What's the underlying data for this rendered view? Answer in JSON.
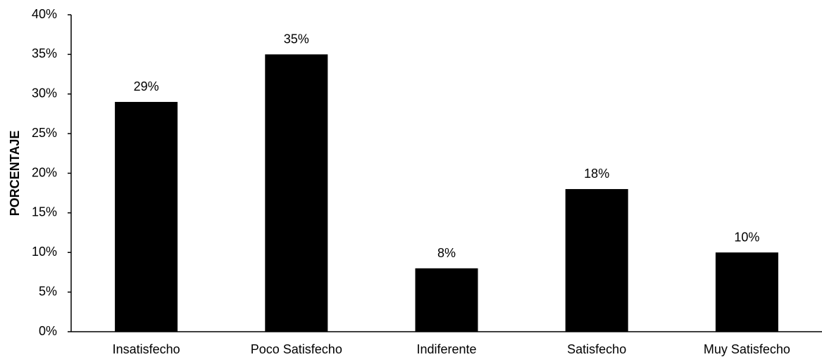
{
  "chart_data": {
    "type": "bar",
    "title": "",
    "xlabel": "",
    "ylabel": "PORCENTAJE",
    "categories": [
      "Insatisfecho",
      "Poco Satisfecho",
      "Indiferente",
      "Satisfecho",
      "Muy Satisfecho"
    ],
    "values": [
      29,
      35,
      8,
      18,
      10
    ],
    "data_labels": [
      "29%",
      "35%",
      "8%",
      "18%",
      "10%"
    ],
    "ylim": [
      0,
      40
    ],
    "yticks": [
      0,
      5,
      10,
      15,
      20,
      25,
      30,
      35,
      40
    ],
    "ytick_labels": [
      "0%",
      "5%",
      "10%",
      "15%",
      "20%",
      "25%",
      "30%",
      "35%",
      "40%"
    ],
    "grid": false,
    "legend": "none",
    "colors": {
      "bar": "#000000",
      "axis": "#000000",
      "background": "#ffffff"
    }
  }
}
